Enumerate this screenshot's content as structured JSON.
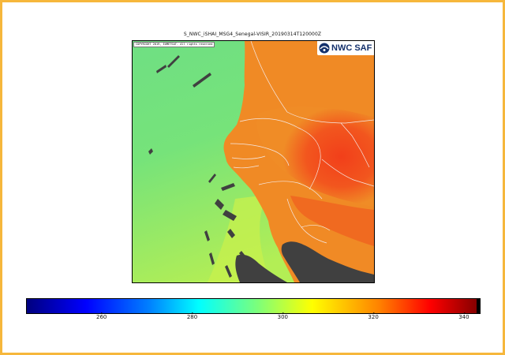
{
  "image": {
    "title": "S_NWC_iSHAI_MSG4_Senegal-VISIR_20190314T120000Z",
    "copyright": "COPYRIGHT 2019, EUMETSAT. All rights reserved",
    "logo_text": "NWC SAF"
  },
  "colors": {
    "frame": "#f6b73c",
    "ocean": "#6fe07c",
    "land": "#f08a25",
    "hot_land": "#f2461c",
    "masked": "#404040",
    "borders": "#f5e9e6",
    "logo": "#13306b"
  },
  "colorbar": {
    "min": 243.5,
    "max": 343.5,
    "ticks": [
      {
        "label": "260",
        "value": 260
      },
      {
        "label": "280",
        "value": 280
      },
      {
        "label": "300",
        "value": 300
      },
      {
        "label": "320",
        "value": 320
      },
      {
        "label": "340",
        "value": 340
      }
    ]
  },
  "icons": {
    "logo": "nwcsaf-logo-icon"
  }
}
